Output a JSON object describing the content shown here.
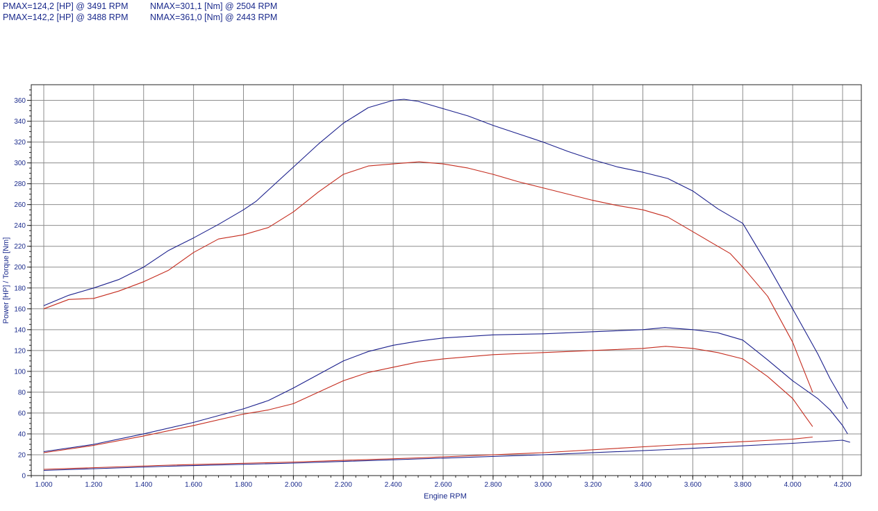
{
  "header": {
    "pmax_1": "PMAX=124,2 [HP] @ 3491 RPM",
    "nmax_1": "NMAX=301,1 [Nm] @ 2504 RPM",
    "pmax_2": "PMAX=142,2 [HP] @ 3488 RPM",
    "nmax_2": "NMAX=361,0 [Nm] @ 2443 RPM"
  },
  "chart_data": {
    "type": "line",
    "xlabel": "Engine RPM",
    "ylabel": "Power [HP] / Torque [Nm]",
    "xlim": [
      1000,
      4230
    ],
    "ylim": [
      0,
      375
    ],
    "grid": true,
    "x_ticks": [
      1000,
      1200,
      1400,
      1600,
      1800,
      2000,
      2200,
      2400,
      2600,
      2800,
      3000,
      3200,
      3400,
      3600,
      3800,
      4000,
      4200
    ],
    "x_tick_labels": [
      "1.000",
      "1.200",
      "1.400",
      "1.600",
      "1.800",
      "2.000",
      "2.200",
      "2.400",
      "2.600",
      "2.800",
      "3.000",
      "3.200",
      "3.400",
      "3.600",
      "3.800",
      "4.000",
      "4.200"
    ],
    "y_ticks": [
      0,
      20,
      40,
      60,
      80,
      100,
      120,
      140,
      160,
      180,
      200,
      220,
      240,
      260,
      280,
      300,
      320,
      340,
      360
    ],
    "y_tick_labels": [
      "0",
      "20",
      "40",
      "60",
      "80",
      "100",
      "120",
      "140",
      "160",
      "180",
      "200",
      "220",
      "240",
      "260",
      "280",
      "300",
      "320",
      "340",
      "360"
    ],
    "series": [
      {
        "color": "#1a1f8c",
        "points": [
          [
            1000,
            163
          ],
          [
            1100,
            173
          ],
          [
            1200,
            180
          ],
          [
            1300,
            188
          ],
          [
            1400,
            200
          ],
          [
            1500,
            216
          ],
          [
            1600,
            228
          ],
          [
            1700,
            241
          ],
          [
            1800,
            255
          ],
          [
            1850,
            263
          ],
          [
            1900,
            274
          ],
          [
            2000,
            296
          ],
          [
            2100,
            318
          ],
          [
            2200,
            338
          ],
          [
            2300,
            353
          ],
          [
            2400,
            360
          ],
          [
            2443,
            361
          ],
          [
            2500,
            359
          ],
          [
            2600,
            352
          ],
          [
            2700,
            345
          ],
          [
            2800,
            336
          ],
          [
            2900,
            328
          ],
          [
            3000,
            320
          ],
          [
            3100,
            311
          ],
          [
            3200,
            303
          ],
          [
            3300,
            296
          ],
          [
            3400,
            291
          ],
          [
            3500,
            285
          ],
          [
            3600,
            273
          ],
          [
            3700,
            256
          ],
          [
            3800,
            242
          ],
          [
            3900,
            202
          ],
          [
            4000,
            160
          ],
          [
            4100,
            117
          ],
          [
            4150,
            93
          ],
          [
            4220,
            64
          ]
        ]
      },
      {
        "color": "#c42a1c",
        "points": [
          [
            1000,
            160
          ],
          [
            1100,
            169
          ],
          [
            1200,
            170
          ],
          [
            1300,
            177
          ],
          [
            1400,
            186
          ],
          [
            1500,
            197
          ],
          [
            1600,
            214
          ],
          [
            1700,
            227
          ],
          [
            1800,
            231
          ],
          [
            1900,
            238
          ],
          [
            2000,
            253
          ],
          [
            2100,
            272
          ],
          [
            2200,
            289
          ],
          [
            2300,
            297
          ],
          [
            2400,
            299
          ],
          [
            2504,
            301
          ],
          [
            2600,
            299
          ],
          [
            2700,
            295
          ],
          [
            2800,
            289
          ],
          [
            2900,
            282
          ],
          [
            3000,
            276
          ],
          [
            3100,
            270
          ],
          [
            3200,
            264
          ],
          [
            3300,
            259
          ],
          [
            3400,
            255
          ],
          [
            3500,
            248
          ],
          [
            3600,
            234
          ],
          [
            3700,
            220
          ],
          [
            3750,
            213
          ],
          [
            3800,
            200
          ],
          [
            3900,
            172
          ],
          [
            4000,
            128
          ],
          [
            4050,
            98
          ],
          [
            4080,
            80
          ]
        ]
      },
      {
        "color": "#1a1f8c",
        "points": [
          [
            1000,
            23
          ],
          [
            1200,
            30
          ],
          [
            1400,
            40
          ],
          [
            1600,
            51
          ],
          [
            1800,
            64
          ],
          [
            1900,
            72
          ],
          [
            2000,
            84
          ],
          [
            2100,
            97
          ],
          [
            2200,
            110
          ],
          [
            2300,
            119
          ],
          [
            2400,
            125
          ],
          [
            2500,
            129
          ],
          [
            2600,
            132
          ],
          [
            2800,
            135
          ],
          [
            3000,
            136
          ],
          [
            3200,
            138
          ],
          [
            3400,
            140
          ],
          [
            3488,
            142
          ],
          [
            3600,
            140
          ],
          [
            3700,
            137
          ],
          [
            3800,
            130
          ],
          [
            3900,
            111
          ],
          [
            4000,
            91
          ],
          [
            4100,
            74
          ],
          [
            4150,
            63
          ],
          [
            4200,
            48
          ],
          [
            4220,
            40
          ]
        ]
      },
      {
        "color": "#c42a1c",
        "points": [
          [
            1000,
            22
          ],
          [
            1200,
            29
          ],
          [
            1400,
            38
          ],
          [
            1600,
            48
          ],
          [
            1800,
            59
          ],
          [
            1900,
            63
          ],
          [
            2000,
            69
          ],
          [
            2100,
            80
          ],
          [
            2200,
            91
          ],
          [
            2300,
            99
          ],
          [
            2400,
            104
          ],
          [
            2500,
            109
          ],
          [
            2600,
            112
          ],
          [
            2800,
            116
          ],
          [
            3000,
            118
          ],
          [
            3200,
            120
          ],
          [
            3400,
            122
          ],
          [
            3491,
            124
          ],
          [
            3600,
            122
          ],
          [
            3700,
            118
          ],
          [
            3800,
            112
          ],
          [
            3900,
            95
          ],
          [
            4000,
            74
          ],
          [
            4050,
            57
          ],
          [
            4080,
            47
          ]
        ]
      },
      {
        "color": "#1a1f8c",
        "points": [
          [
            1000,
            5
          ],
          [
            1500,
            9
          ],
          [
            2000,
            12
          ],
          [
            2500,
            16
          ],
          [
            3000,
            20
          ],
          [
            3500,
            25
          ],
          [
            4000,
            31
          ],
          [
            4200,
            34
          ],
          [
            4230,
            32
          ]
        ]
      },
      {
        "color": "#c42a1c",
        "points": [
          [
            1000,
            6
          ],
          [
            1500,
            10
          ],
          [
            2000,
            13
          ],
          [
            2500,
            17
          ],
          [
            3000,
            22
          ],
          [
            3500,
            29
          ],
          [
            4000,
            35
          ],
          [
            4080,
            37
          ]
        ]
      }
    ]
  }
}
